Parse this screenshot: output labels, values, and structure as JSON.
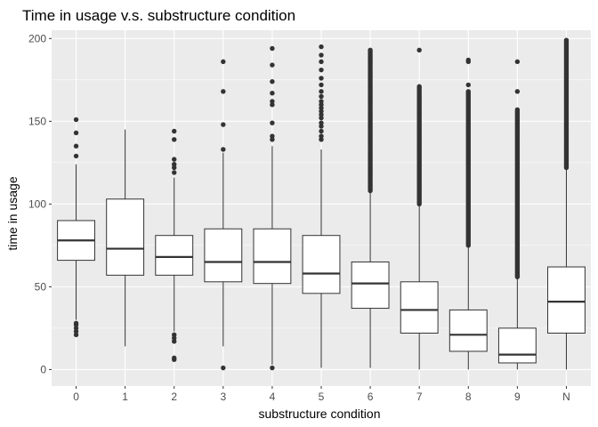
{
  "chart_data": {
    "type": "boxplot",
    "title": "Time in usage v.s. substructure condition",
    "xlabel": "substructure condition",
    "ylabel": "time in usage",
    "categories": [
      "0",
      "1",
      "2",
      "3",
      "4",
      "5",
      "6",
      "7",
      "8",
      "9",
      "N"
    ],
    "ylim": [
      -10,
      205
    ],
    "yticks": [
      0,
      50,
      100,
      150,
      200
    ],
    "grid": true,
    "colors": {
      "panel": "#ebebeb",
      "grid_major": "#ffffff",
      "box_fill": "#ffffff",
      "box_line": "#333333",
      "point": "#333333"
    },
    "boxes": [
      {
        "category": "0",
        "whisker_low": 30,
        "q1": 66,
        "median": 78,
        "q3": 90,
        "whisker_high": 124,
        "outliers": [
          21,
          23,
          25,
          27,
          28,
          129,
          135,
          143,
          151
        ],
        "dense_outliers": []
      },
      {
        "category": "1",
        "whisker_low": 14,
        "q1": 57,
        "median": 73,
        "q3": 103,
        "whisker_high": 145,
        "outliers": [],
        "dense_outliers": []
      },
      {
        "category": "2",
        "whisker_low": 23,
        "q1": 57,
        "median": 68,
        "q3": 81,
        "whisker_high": 116,
        "outliers": [
          6,
          7,
          17,
          19,
          21,
          119,
          122,
          124,
          127,
          139,
          144
        ],
        "dense_outliers": []
      },
      {
        "category": "3",
        "whisker_low": 14,
        "q1": 53,
        "median": 65,
        "q3": 85,
        "whisker_high": 131,
        "outliers": [
          1,
          133,
          148,
          168,
          186
        ],
        "dense_outliers": []
      },
      {
        "category": "4",
        "whisker_low": 3,
        "q1": 52,
        "median": 65,
        "q3": 85,
        "whisker_high": 135,
        "outliers": [
          1,
          139,
          141,
          149,
          160,
          162,
          167,
          174,
          184,
          194
        ],
        "dense_outliers": []
      },
      {
        "category": "5",
        "whisker_low": 1,
        "q1": 46,
        "median": 58,
        "q3": 81,
        "whisker_high": 133,
        "outliers": [
          139,
          141,
          144,
          147,
          149,
          152,
          154,
          156,
          158,
          160,
          162,
          165,
          168,
          172,
          176,
          181,
          186,
          190,
          195
        ],
        "dense_outliers": []
      },
      {
        "category": "6",
        "whisker_low": 1,
        "q1": 37,
        "median": 52,
        "q3": 65,
        "whisker_high": 107,
        "outliers": [],
        "dense_outliers": [
          108,
          193
        ]
      },
      {
        "category": "7",
        "whisker_low": 0,
        "q1": 22,
        "median": 36,
        "q3": 53,
        "whisker_high": 99,
        "outliers": [
          193
        ],
        "dense_outliers": [
          100,
          171
        ]
      },
      {
        "category": "8",
        "whisker_low": 0,
        "q1": 11,
        "median": 21,
        "q3": 36,
        "whisker_high": 74,
        "outliers": [
          172,
          186,
          187
        ],
        "dense_outliers": [
          75,
          168
        ]
      },
      {
        "category": "9",
        "whisker_low": 0,
        "q1": 4,
        "median": 9,
        "q3": 25,
        "whisker_high": 55,
        "outliers": [
          168,
          186
        ],
        "dense_outliers": [
          56,
          157
        ]
      },
      {
        "category": "N",
        "whisker_low": 0,
        "q1": 22,
        "median": 41,
        "q3": 62,
        "whisker_high": 121,
        "outliers": [],
        "dense_outliers": [
          122,
          199
        ]
      }
    ]
  }
}
